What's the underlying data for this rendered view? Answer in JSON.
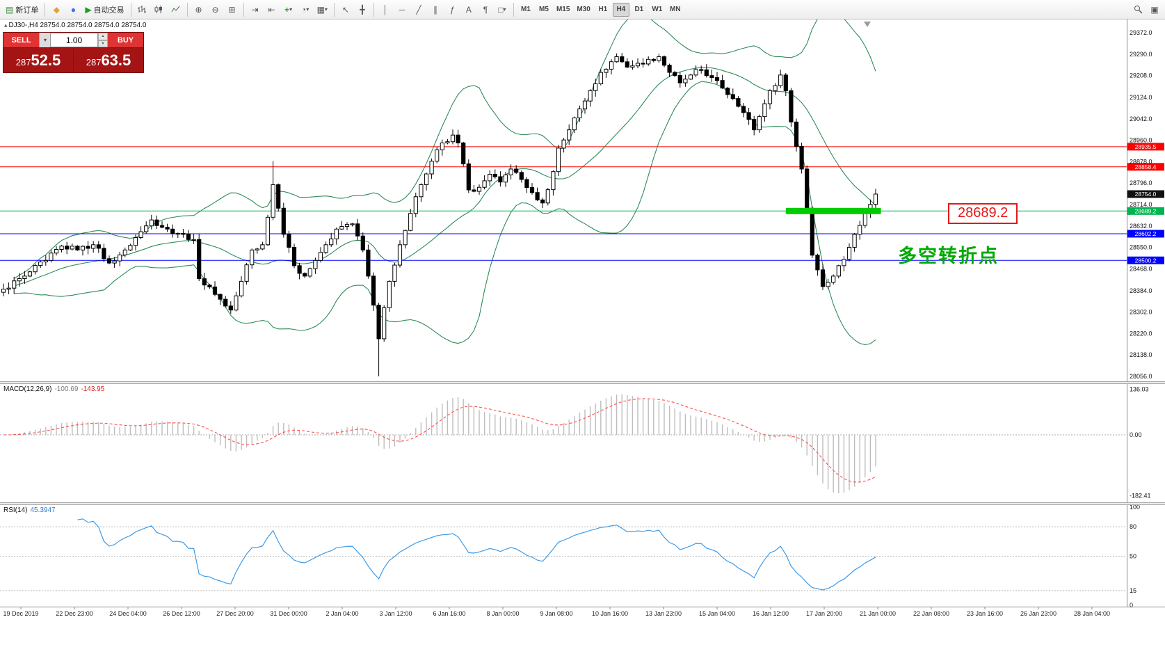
{
  "toolbar": {
    "new_order_label": "新订单",
    "auto_trading_label": "自动交易",
    "timeframes": [
      "M1",
      "M5",
      "M15",
      "M30",
      "H1",
      "H4",
      "D1",
      "W1",
      "MN"
    ],
    "active_timeframe": "H4"
  },
  "symbol_line": "DJ30-,H4  28754.0 28754.0 28754.0 28754.0",
  "trade_panel": {
    "sell_label": "SELL",
    "buy_label": "BUY",
    "volume": "1.00",
    "sell_price": "28752.5",
    "buy_price": "28763.5"
  },
  "price_axis_labels": [
    "29372.0",
    "29290.0",
    "29208.0",
    "29124.0",
    "29042.0",
    "28960.0",
    "28878.0",
    "28796.0",
    "28714.0",
    "28632.0",
    "28550.0",
    "28468.0",
    "28384.0",
    "28302.0",
    "28220.0",
    "28138.0",
    "28056.0"
  ],
  "price_lines": [
    {
      "price": 28935.5,
      "label": "28935.5",
      "color": "#ff0000"
    },
    {
      "price": 28858.4,
      "label": "28858.4",
      "color": "#ff0000"
    },
    {
      "price": 28689.2,
      "label": "28689.2",
      "color": "#00b450"
    },
    {
      "price": 28602.2,
      "label": "28602.2",
      "color": "#0000ff"
    },
    {
      "price": 28500.2,
      "label": "28500.2",
      "color": "#0000ff"
    }
  ],
  "current_price": {
    "price": 28754.0,
    "label": "28754.0",
    "bg": "#111111"
  },
  "annotations": {
    "callout_price": "28689.2",
    "note": "多空转折点",
    "highlight_price": 28689.2,
    "highlight_from_candle": 148,
    "highlight_to_candle": 166
  },
  "chart_data": {
    "type": "candlestick",
    "symbol": "DJ30-",
    "period": "H4",
    "ohlc_current": {
      "open": "28754.0",
      "high": "28754.0",
      "low": "28754.0",
      "close": "28754.0"
    },
    "ylim": [
      28056.0,
      29372.0
    ],
    "n_candles": 166,
    "close_anchors": [
      [
        0,
        28390
      ],
      [
        4,
        28440
      ],
      [
        8,
        28500
      ],
      [
        11,
        28555
      ],
      [
        14,
        28540
      ],
      [
        17,
        28560
      ],
      [
        20,
        28490
      ],
      [
        23,
        28540
      ],
      [
        26,
        28610
      ],
      [
        28,
        28655
      ],
      [
        31,
        28620
      ],
      [
        34,
        28600
      ],
      [
        36,
        28580
      ],
      [
        37,
        28430
      ],
      [
        40,
        28370
      ],
      [
        43,
        28310
      ],
      [
        45,
        28420
      ],
      [
        47,
        28540
      ],
      [
        49,
        28560
      ],
      [
        51,
        28790
      ],
      [
        52,
        28700
      ],
      [
        53,
        28600
      ],
      [
        55,
        28480
      ],
      [
        57,
        28440
      ],
      [
        59,
        28500
      ],
      [
        61,
        28560
      ],
      [
        63,
        28620
      ],
      [
        66,
        28640
      ],
      [
        68,
        28540
      ],
      [
        69,
        28440
      ],
      [
        71,
        28200
      ],
      [
        73,
        28420
      ],
      [
        75,
        28560
      ],
      [
        77,
        28680
      ],
      [
        79,
        28790
      ],
      [
        81,
        28880
      ],
      [
        83,
        28950
      ],
      [
        85,
        28980
      ],
      [
        86,
        28950
      ],
      [
        88,
        28770
      ],
      [
        90,
        28780
      ],
      [
        92,
        28830
      ],
      [
        94,
        28800
      ],
      [
        96,
        28850
      ],
      [
        98,
        28810
      ],
      [
        100,
        28760
      ],
      [
        102,
        28720
      ],
      [
        104,
        28840
      ],
      [
        105,
        28930
      ],
      [
        107,
        29000
      ],
      [
        109,
        29080
      ],
      [
        111,
        29150
      ],
      [
        113,
        29220
      ],
      [
        116,
        29280
      ],
      [
        118,
        29240
      ],
      [
        120,
        29255
      ],
      [
        122,
        29270
      ],
      [
        124,
        29280
      ],
      [
        126,
        29220
      ],
      [
        128,
        29180
      ],
      [
        130,
        29210
      ],
      [
        132,
        29230
      ],
      [
        134,
        29200
      ],
      [
        136,
        29160
      ],
      [
        138,
        29120
      ],
      [
        139,
        29090
      ],
      [
        141,
        29040
      ],
      [
        142,
        29000
      ],
      [
        144,
        29100
      ],
      [
        145,
        29150
      ],
      [
        147,
        29210
      ],
      [
        148,
        29150
      ],
      [
        149,
        29030
      ],
      [
        151,
        28850
      ],
      [
        152,
        28700
      ],
      [
        153,
        28520
      ],
      [
        155,
        28400
      ],
      [
        157,
        28440
      ],
      [
        158,
        28480
      ],
      [
        160,
        28550
      ],
      [
        161,
        28600
      ],
      [
        163,
        28680
      ],
      [
        165,
        28754
      ]
    ],
    "wick_overrides": [
      {
        "i": 51,
        "high": 28880
      },
      {
        "i": 71,
        "low": 28056
      }
    ],
    "bollinger": {
      "period": 20,
      "deviation": 2,
      "color": "#2e8b57"
    },
    "macd": {
      "fast": 12,
      "slow": 26,
      "signal": 9
    },
    "rsi": {
      "period": 14
    }
  },
  "macd_panel": {
    "title": "MACD(12,26,9)",
    "macd_value": "-100.69",
    "signal_value": "-143.95",
    "scale_labels": [
      {
        "v": 136.03,
        "label": "136.03"
      },
      {
        "v": 0,
        "label": "0.00"
      },
      {
        "v": -182.41,
        "label": "-182.41"
      }
    ]
  },
  "rsi_panel": {
    "title": "RSI(14)",
    "value": "45.3947",
    "scale_labels": [
      {
        "v": 100,
        "label": "100"
      },
      {
        "v": 80,
        "label": "80"
      },
      {
        "v": 50,
        "label": "50"
      },
      {
        "v": 15,
        "label": "15"
      },
      {
        "v": 0,
        "label": "0"
      }
    ],
    "levels": [
      80,
      50,
      15
    ]
  },
  "time_axis": [
    "19 Dec 2019",
    "22 Dec 23:00",
    "24 Dec 04:00",
    "26 Dec 12:00",
    "27 Dec 20:00",
    "31 Dec 00:00",
    "2 Jan 04:00",
    "3 Jan 12:00",
    "6 Jan 16:00",
    "8 Jan 00:00",
    "9 Jan 08:00",
    "10 Jan 16:00",
    "13 Jan 23:00",
    "15 Jan 04:00",
    "16 Jan 12:00",
    "17 Jan 20:00",
    "21 Jan 00:00",
    "22 Jan 08:00",
    "23 Jan 16:00",
    "26 Jan 23:00",
    "28 Jan 04:00"
  ]
}
